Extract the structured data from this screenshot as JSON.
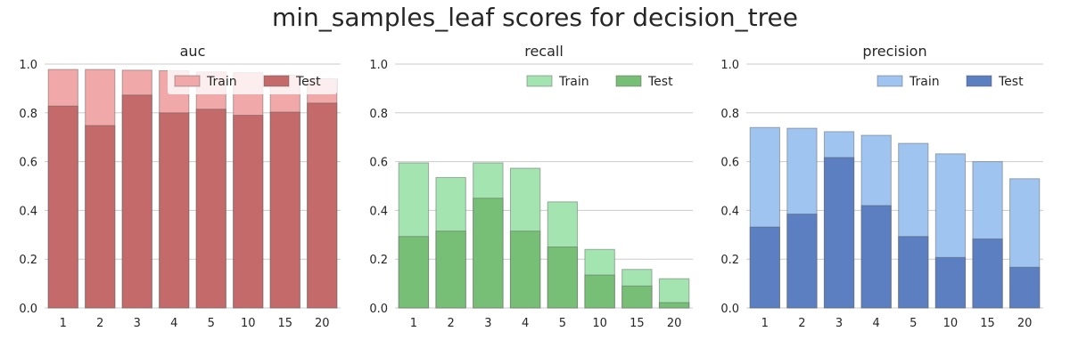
{
  "suptitle": "min_samples_leaf scores for decision_tree",
  "chart_data": [
    {
      "type": "bar",
      "title": "auc",
      "categories": [
        "1",
        "2",
        "3",
        "4",
        "5",
        "10",
        "15",
        "20"
      ],
      "ylim": [
        0,
        1.0
      ],
      "yticks": [
        "0.0",
        "0.2",
        "0.4",
        "0.6",
        "0.8",
        "1.0"
      ],
      "grid": "horizontal",
      "legend": "top-right",
      "colors": {
        "train": "#f0a8a8",
        "test": "#c46a6a"
      },
      "series": [
        {
          "name": "Train",
          "values": [
            0.978,
            0.978,
            0.975,
            0.973,
            0.968,
            0.965,
            0.955,
            0.94
          ]
        },
        {
          "name": "Test",
          "values": [
            0.828,
            0.748,
            0.873,
            0.8,
            0.815,
            0.79,
            0.803,
            0.84
          ]
        }
      ]
    },
    {
      "type": "bar",
      "title": "recall",
      "categories": [
        "1",
        "2",
        "3",
        "4",
        "5",
        "10",
        "15",
        "20"
      ],
      "ylim": [
        0,
        1.0
      ],
      "yticks": [
        "0.0",
        "0.2",
        "0.4",
        "0.6",
        "0.8",
        "1.0"
      ],
      "grid": "horizontal",
      "legend": "top-right",
      "colors": {
        "train": "#a3e4b0",
        "test": "#77bf77"
      },
      "series": [
        {
          "name": "Train",
          "values": [
            0.595,
            0.535,
            0.595,
            0.573,
            0.435,
            0.24,
            0.158,
            0.12
          ]
        },
        {
          "name": "Test",
          "values": [
            0.293,
            0.315,
            0.45,
            0.315,
            0.25,
            0.135,
            0.09,
            0.022
          ]
        }
      ]
    },
    {
      "type": "bar",
      "title": "precision",
      "categories": [
        "1",
        "2",
        "3",
        "4",
        "5",
        "10",
        "15",
        "20"
      ],
      "ylim": [
        0,
        1.0
      ],
      "yticks": [
        "0.0",
        "0.2",
        "0.4",
        "0.6",
        "0.8",
        "1.0"
      ],
      "grid": "horizontal",
      "legend": "top-right",
      "colors": {
        "train": "#a0c4f0",
        "test": "#5b7fc0"
      },
      "series": [
        {
          "name": "Train",
          "values": [
            0.74,
            0.737,
            0.723,
            0.708,
            0.675,
            0.632,
            0.6,
            0.53
          ]
        },
        {
          "name": "Test",
          "values": [
            0.332,
            0.385,
            0.617,
            0.42,
            0.293,
            0.207,
            0.283,
            0.167
          ]
        }
      ]
    }
  ]
}
